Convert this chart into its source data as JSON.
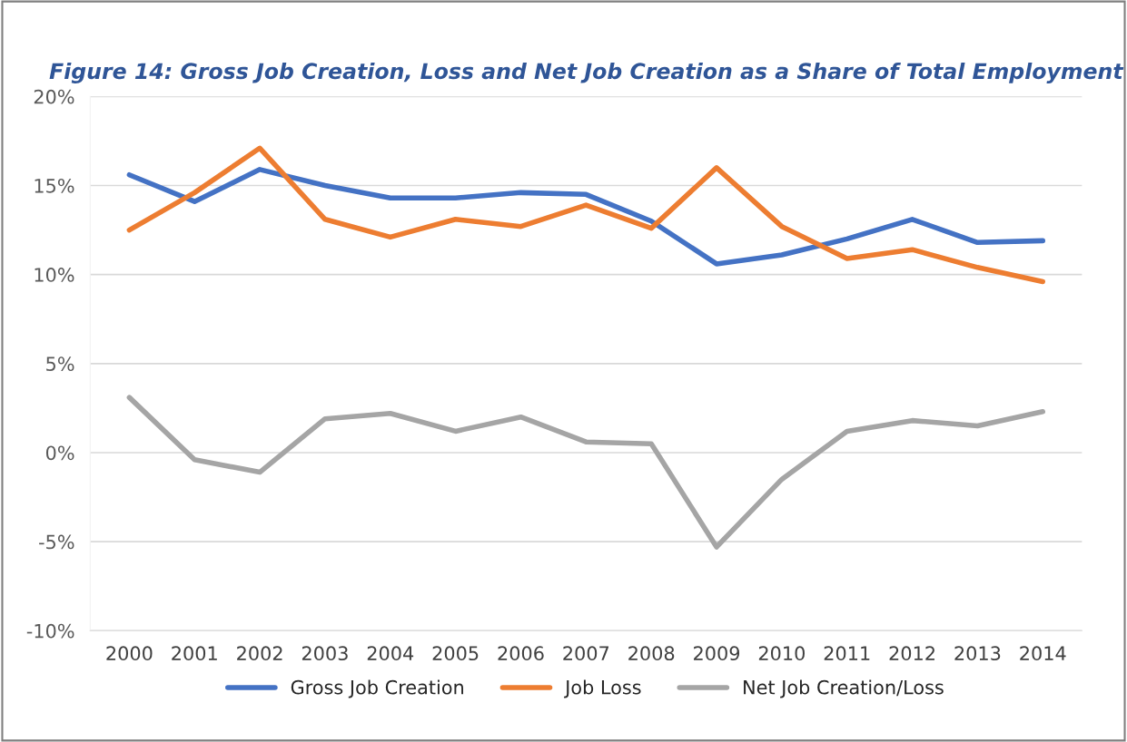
{
  "chart_data": {
    "type": "line",
    "title": "Figure 14: Gross Job Creation, Loss and Net Job Creation as a Share of Total Employment",
    "categories": [
      "2000",
      "2001",
      "2002",
      "2003",
      "2004",
      "2005",
      "2006",
      "2007",
      "2008",
      "2009",
      "2010",
      "2011",
      "2012",
      "2013",
      "2014"
    ],
    "series": [
      {
        "name": "Gross Job Creation",
        "color": "#4472c4",
        "values": [
          15.6,
          14.1,
          15.9,
          15.0,
          14.3,
          14.3,
          14.6,
          14.5,
          13.0,
          10.6,
          11.1,
          12.0,
          13.1,
          11.8,
          11.9
        ]
      },
      {
        "name": "Job Loss",
        "color": "#ed7d31",
        "values": [
          12.5,
          14.6,
          17.1,
          13.1,
          12.1,
          13.1,
          12.7,
          13.9,
          12.6,
          16.0,
          12.7,
          10.9,
          11.4,
          10.4,
          9.6
        ]
      },
      {
        "name": "Net Job Creation/Loss",
        "color": "#a5a5a5",
        "values": [
          3.1,
          -0.4,
          -1.1,
          1.9,
          2.2,
          1.2,
          2.0,
          0.6,
          0.5,
          -5.3,
          -1.5,
          1.2,
          1.8,
          1.5,
          2.3
        ]
      }
    ],
    "ylim": [
      -10,
      20
    ],
    "yticks": [
      {
        "value": -10,
        "label": "-10%"
      },
      {
        "value": -5,
        "label": "-5%"
      },
      {
        "value": 0,
        "label": "0%"
      },
      {
        "value": 5,
        "label": "5%"
      },
      {
        "value": 10,
        "label": "10%"
      },
      {
        "value": 15,
        "label": "15%"
      },
      {
        "value": 20,
        "label": "20%"
      }
    ],
    "grid": "y",
    "legend": "bottom",
    "marker": "none",
    "line_style": "solid"
  }
}
